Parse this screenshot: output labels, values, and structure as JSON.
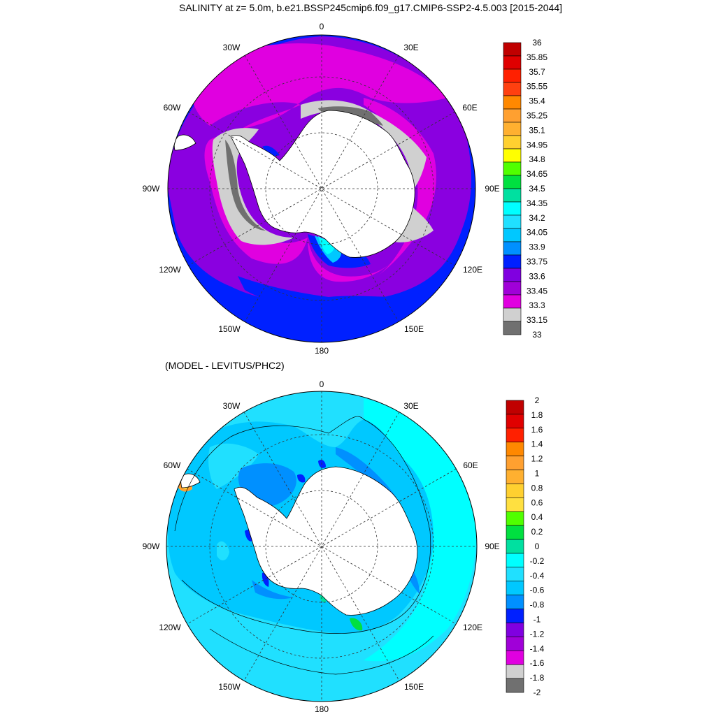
{
  "top_panel": {
    "title": "SALINITY at z=   5.0m, b.e21.BSSP245cmip6.f09_g17.CMIP6-SSP2-4.5.003 [2015-2044]",
    "lon_labels": {
      "n": "0",
      "nne": "30E",
      "ene": "60E",
      "e": "90E",
      "ese": "120E",
      "sse": "150E",
      "s": "180",
      "ssw": "150W",
      "wsw": "120W",
      "w": "90W",
      "wnw": "60W",
      "nnw": "30W"
    },
    "colorbar": {
      "labels": [
        "36",
        "35.85",
        "35.7",
        "35.55",
        "35.4",
        "35.25",
        "35.1",
        "34.95",
        "34.8",
        "34.65",
        "34.5",
        "34.35",
        "34.2",
        "34.05",
        "33.9",
        "33.75",
        "33.6",
        "33.45",
        "33.3",
        "33.15",
        "33"
      ],
      "colors": [
        "#c00000",
        "#e00000",
        "#ff2000",
        "#ff4010",
        "#ff8800",
        "#ffa030",
        "#ffb030",
        "#ffd030",
        "#ffff00",
        "#50ff00",
        "#00e040",
        "#00e0a0",
        "#00ffff",
        "#20e0ff",
        "#00c8ff",
        "#0090ff",
        "#0020ff",
        "#8000e0",
        "#a000d8",
        "#e000e0",
        "#d0d0d0",
        "#707070"
      ]
    }
  },
  "bottom_panel": {
    "title": "(MODEL - LEVITUS/PHC2)",
    "lon_labels": {
      "n": "0",
      "nne": "30E",
      "ene": "60E",
      "e": "90E",
      "ese": "120E",
      "sse": "150E",
      "s": "180",
      "ssw": "150W",
      "wsw": "120W",
      "w": "90W",
      "wnw": "60W",
      "nnw": "30W"
    },
    "colorbar": {
      "labels": [
        "2",
        "1.8",
        "1.6",
        "1.4",
        "1.2",
        "1",
        "0.8",
        "0.6",
        "0.4",
        "0.2",
        "0",
        "-0.2",
        "-0.4",
        "-0.6",
        "-0.8",
        "-1",
        "-1.2",
        "-1.4",
        "-1.6",
        "-1.8",
        "-2"
      ],
      "colors": [
        "#c00000",
        "#e00000",
        "#ff2000",
        "#ff8800",
        "#ffa030",
        "#ffb030",
        "#ffd030",
        "#ffe040",
        "#50ff00",
        "#00e040",
        "#00e0a0",
        "#00ffff",
        "#20e0ff",
        "#00c8ff",
        "#0090ff",
        "#0020ff",
        "#8000e0",
        "#a000d8",
        "#e000e0",
        "#d0d0d0",
        "#707070"
      ]
    }
  }
}
